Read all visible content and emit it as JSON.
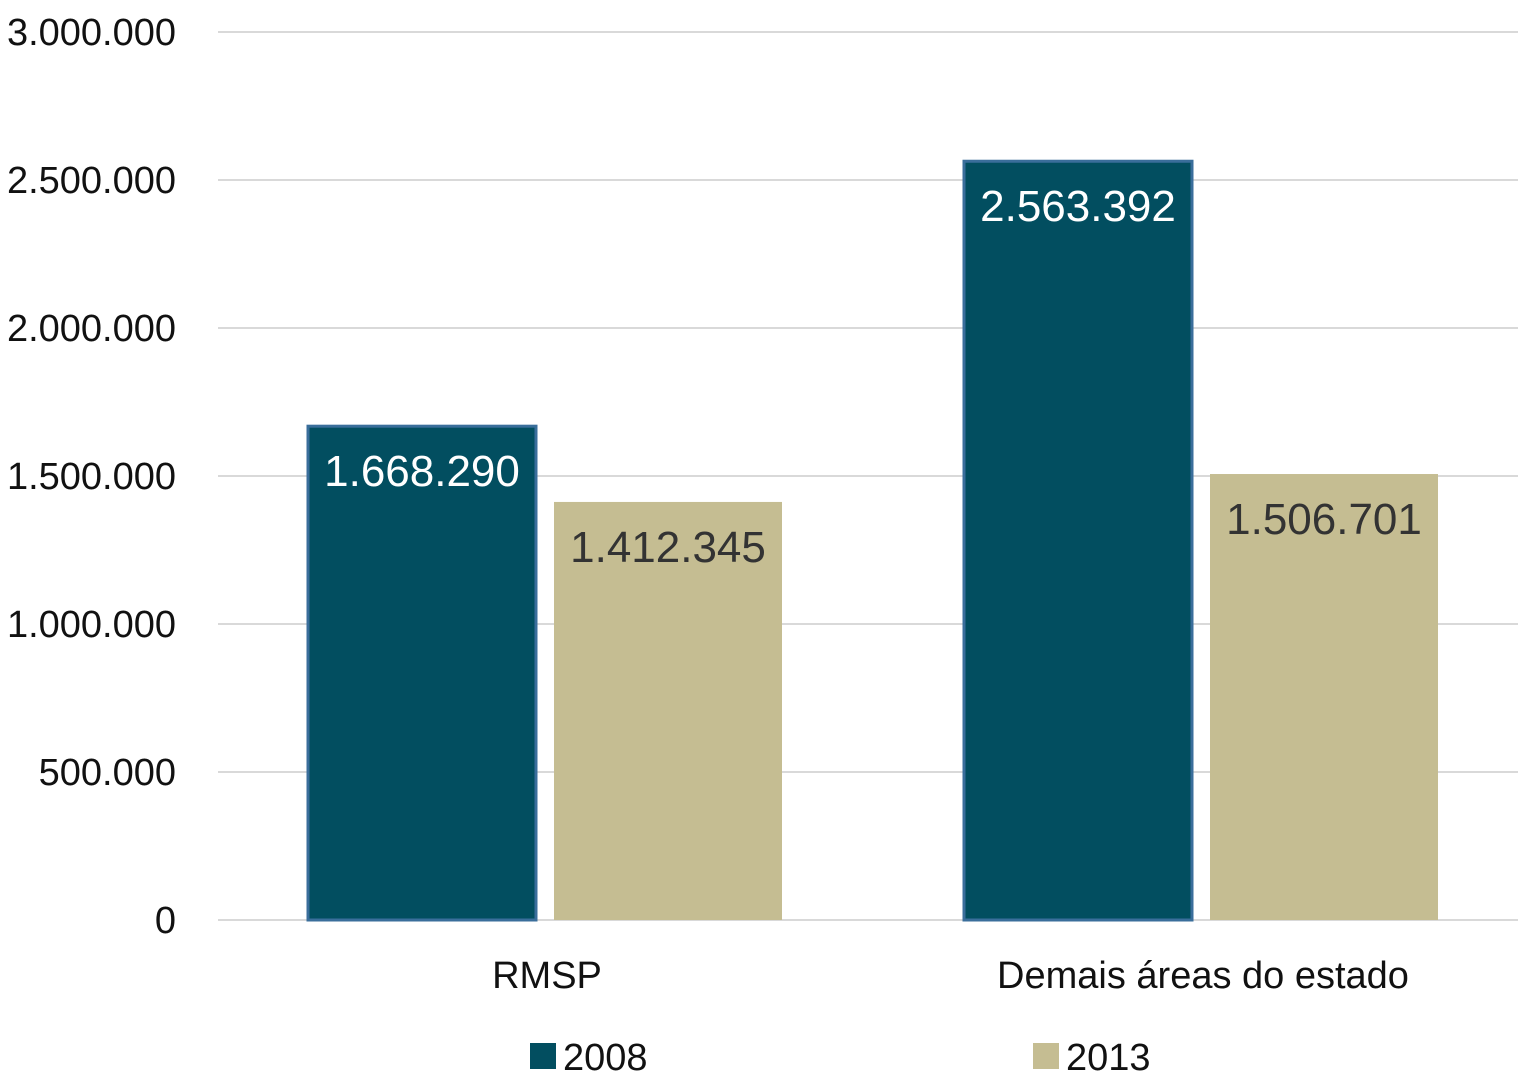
{
  "chart_data": {
    "type": "bar",
    "title": "",
    "xlabel": "",
    "ylabel": "",
    "categories": [
      "RMSP",
      "Demais áreas do estado"
    ],
    "series": [
      {
        "name": "2008",
        "values": [
          1668290,
          2563392
        ],
        "labels": [
          "1.668.290",
          "2.563.392"
        ],
        "color": "#024E60",
        "label_color": "#ffffff"
      },
      {
        "name": "2013",
        "values": [
          1412345,
          1506701
        ],
        "labels": [
          "1.412.345",
          "1.506.701"
        ],
        "color": "#C5BD92",
        "label_color": "#333333"
      }
    ],
    "ylim": [
      0,
      3000000
    ],
    "yticks": [
      0,
      500000,
      1000000,
      1500000,
      2000000,
      2500000,
      3000000
    ],
    "ytick_labels": [
      "0",
      "500.000",
      "1.000.000",
      "1.500.000",
      "2.000.000",
      "2.500.000",
      "3.000.000"
    ],
    "grid": true,
    "gridline_color": "#D9D9D9",
    "legend_position": "bottom"
  }
}
